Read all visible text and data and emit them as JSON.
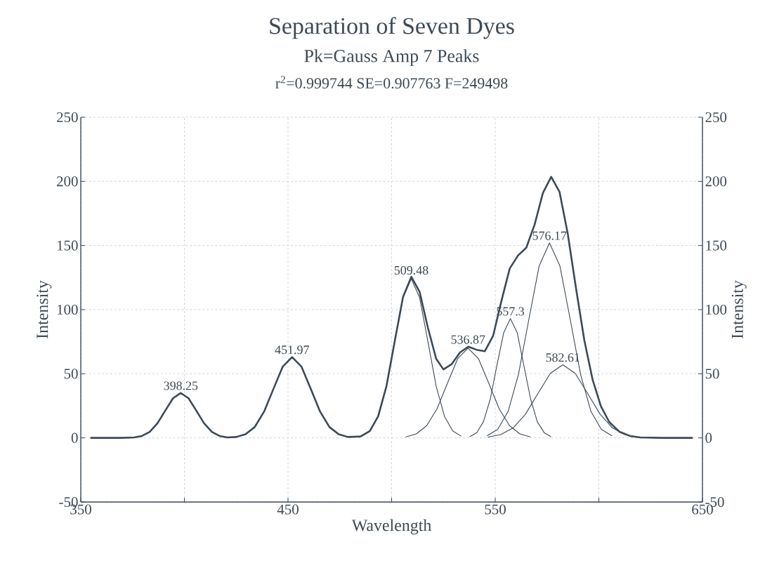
{
  "chart_data": {
    "type": "line",
    "title": "Separation of Seven Dyes",
    "subtitle": "Pk=Gauss Amp  7 Peaks",
    "xlabel": "Wavelength",
    "ylabel": "Intensity",
    "y2label": "Intensity",
    "xlim": [
      350,
      650
    ],
    "xticks": [
      350,
      {
        "value": 400,
        "label": null
      },
      450,
      {
        "value": 500,
        "label": null
      },
      550,
      {
        "value": 600,
        "label": null
      },
      650
    ],
    "ylim": [
      -50,
      250
    ],
    "yticks": [
      -50,
      0,
      50,
      100,
      150,
      200,
      250
    ],
    "y2lim": [
      -50,
      250
    ],
    "y2ticks": [
      -50,
      0,
      50,
      100,
      150,
      200,
      250
    ],
    "grid": true,
    "series": [
      {
        "color": "#3d4a57",
        "x": [
          355,
          370,
          375.75,
          379.5,
          383.25,
          387,
          390.75,
          394.5,
          398.25,
          402,
          405.75,
          409.5,
          413.25,
          417,
          420.75,
          424.97,
          429.47,
          433.97,
          438.47,
          442.97,
          447.47,
          451.97,
          456.47,
          460.97,
          465.47,
          469.97,
          474.47,
          478.97,
          485,
          489.5,
          493.5,
          497.5,
          501.5,
          505.5,
          509.5,
          513.5,
          517.5,
          521.5,
          525,
          529,
          533,
          537,
          541,
          545,
          549,
          553,
          557,
          561,
          565,
          569,
          573,
          577,
          581,
          585,
          589,
          593,
          597,
          601,
          605,
          610,
          615,
          620,
          630,
          645
        ],
        "values": [
          0,
          0,
          0.4,
          1.5,
          4.7,
          11.4,
          21.2,
          30.9,
          35,
          30.9,
          21.2,
          11.4,
          4.7,
          1.5,
          0.4,
          0.7,
          2.8,
          8.5,
          20.5,
          38.2,
          55.6,
          63,
          55.6,
          38.2,
          20.5,
          8.5,
          2.8,
          0.7,
          1.1,
          5.4,
          16.8,
          40.3,
          75.3,
          109.9,
          125.6,
          113.9,
          85.9,
          61.7,
          53.4,
          57.5,
          66.6,
          71.1,
          68.7,
          67.6,
          79.7,
          106.9,
          132.1,
          142.2,
          148.3,
          166.3,
          190.9,
          203.5,
          191.9,
          159.1,
          116.4,
          76.0,
          45.3,
          24.7,
          12.4,
          4.7,
          1.5,
          0.4,
          0,
          0
        ]
      },
      {
        "color": "#3d4a57",
        "x": [
          485.5,
          489.5,
          493.5,
          497.5,
          501.5,
          505.5,
          509.48,
          513.5,
          517.5,
          521.5,
          525.5,
          529.5,
          533.5
        ],
        "values": [
          1.4,
          5.4,
          16.8,
          40.3,
          75.2,
          109.4,
          124,
          109.4,
          75.2,
          40.3,
          16.8,
          5.4,
          1.4
        ]
      },
      {
        "color": "#3d4a57",
        "x": [
          506.9,
          511.9,
          516.9,
          521.9,
          526.9,
          531.9,
          536.87,
          541.9,
          546.9,
          551.9,
          556.9,
          561.9,
          566.9
        ],
        "values": [
          0.8,
          3.1,
          9.5,
          22.7,
          42.5,
          61.8,
          70,
          61.8,
          42.5,
          22.7,
          9.5,
          3.1,
          0.8
        ]
      },
      {
        "color": "#3d4a57",
        "x": [
          537.8,
          541.1,
          544.3,
          547.6,
          550.8,
          554.1,
          557.3,
          560.6,
          563.8,
          567.1,
          570.3,
          573.6,
          576.8
        ],
        "values": [
          1.0,
          4.1,
          12.6,
          30.2,
          56.4,
          82.1,
          93,
          82.1,
          56.4,
          30.2,
          12.6,
          4.1,
          1.0
        ]
      },
      {
        "color": "#3d4a57",
        "x": [
          546.2,
          551.2,
          556.2,
          561.2,
          566.2,
          571.2,
          576.17,
          581.2,
          586.2,
          591.2,
          596.2,
          601.2,
          606.2
        ],
        "values": [
          1.7,
          6.7,
          20.6,
          49.4,
          92.2,
          134.1,
          152,
          134.1,
          92.2,
          49.4,
          20.6,
          6.7,
          1.7
        ]
      },
      {
        "color": "#3d4a57",
        "x": [
          546.6,
          552.6,
          558.6,
          564.6,
          570.6,
          576.6,
          582.61,
          588.6,
          594.6,
          600.6,
          606.6,
          612.6,
          618.6
        ],
        "values": [
          0.6,
          2.5,
          7.7,
          18.5,
          34.6,
          50.3,
          57,
          50.3,
          34.6,
          18.5,
          7.7,
          2.5,
          0.6
        ]
      }
    ],
    "annotations": [
      "r$^{2}$=0.999744  SE=0.907763  F=249498",
      {
        "text": "398.25",
        "x": 398.25,
        "y": 35
      },
      {
        "text": "451.97",
        "x": 451.97,
        "y": 63
      },
      {
        "text": "509.48",
        "x": 509.48,
        "y": 125
      },
      {
        "text": "536.87",
        "x": 536.87,
        "y": 71
      },
      {
        "text": "557.3",
        "x": 557.3,
        "y": 93
      },
      {
        "text": "576.17",
        "x": 576.17,
        "y": 152
      },
      {
        "text": "582.61",
        "x": 582.61,
        "y": 57
      }
    ]
  }
}
